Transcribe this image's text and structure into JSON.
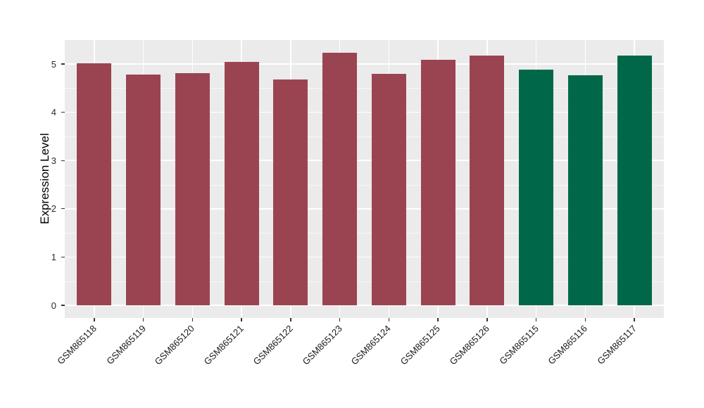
{
  "chart_data": {
    "type": "bar",
    "title": "",
    "xlabel": "",
    "ylabel": "Expression Level",
    "categories": [
      "GSM865118",
      "GSM865119",
      "GSM865120",
      "GSM865121",
      "GSM865122",
      "GSM865123",
      "GSM865124",
      "GSM865125",
      "GSM865126",
      "GSM865115",
      "GSM865116",
      "GSM865117"
    ],
    "values": [
      5.01,
      4.78,
      4.81,
      5.04,
      4.68,
      5.24,
      4.8,
      5.09,
      5.18,
      4.89,
      4.76,
      5.18
    ],
    "bar_colors": [
      "#9B4451",
      "#9B4451",
      "#9B4451",
      "#9B4451",
      "#9B4451",
      "#9B4451",
      "#9B4451",
      "#9B4451",
      "#9B4451",
      "#006849",
      "#006849",
      "#006849"
    ],
    "group_colors": {
      "maroon_group": "#9B4451",
      "green_group": "#006849"
    },
    "yticks": [
      "0",
      "1",
      "2",
      "3",
      "4",
      "5"
    ],
    "ytick_values": [
      0,
      1,
      2,
      3,
      4,
      5
    ],
    "minor_ytick_values": [
      0.5,
      1.5,
      2.5,
      3.5,
      4.5
    ],
    "ylim": [
      -0.26,
      5.51
    ],
    "grid": "major-and-minor-horizontal, major-vertical-at-categories",
    "legend_position": "none",
    "panel_background": "#EBEBEB",
    "gridline_color": "#FFFFFF",
    "axis_text_color": "#2b2b2b"
  }
}
